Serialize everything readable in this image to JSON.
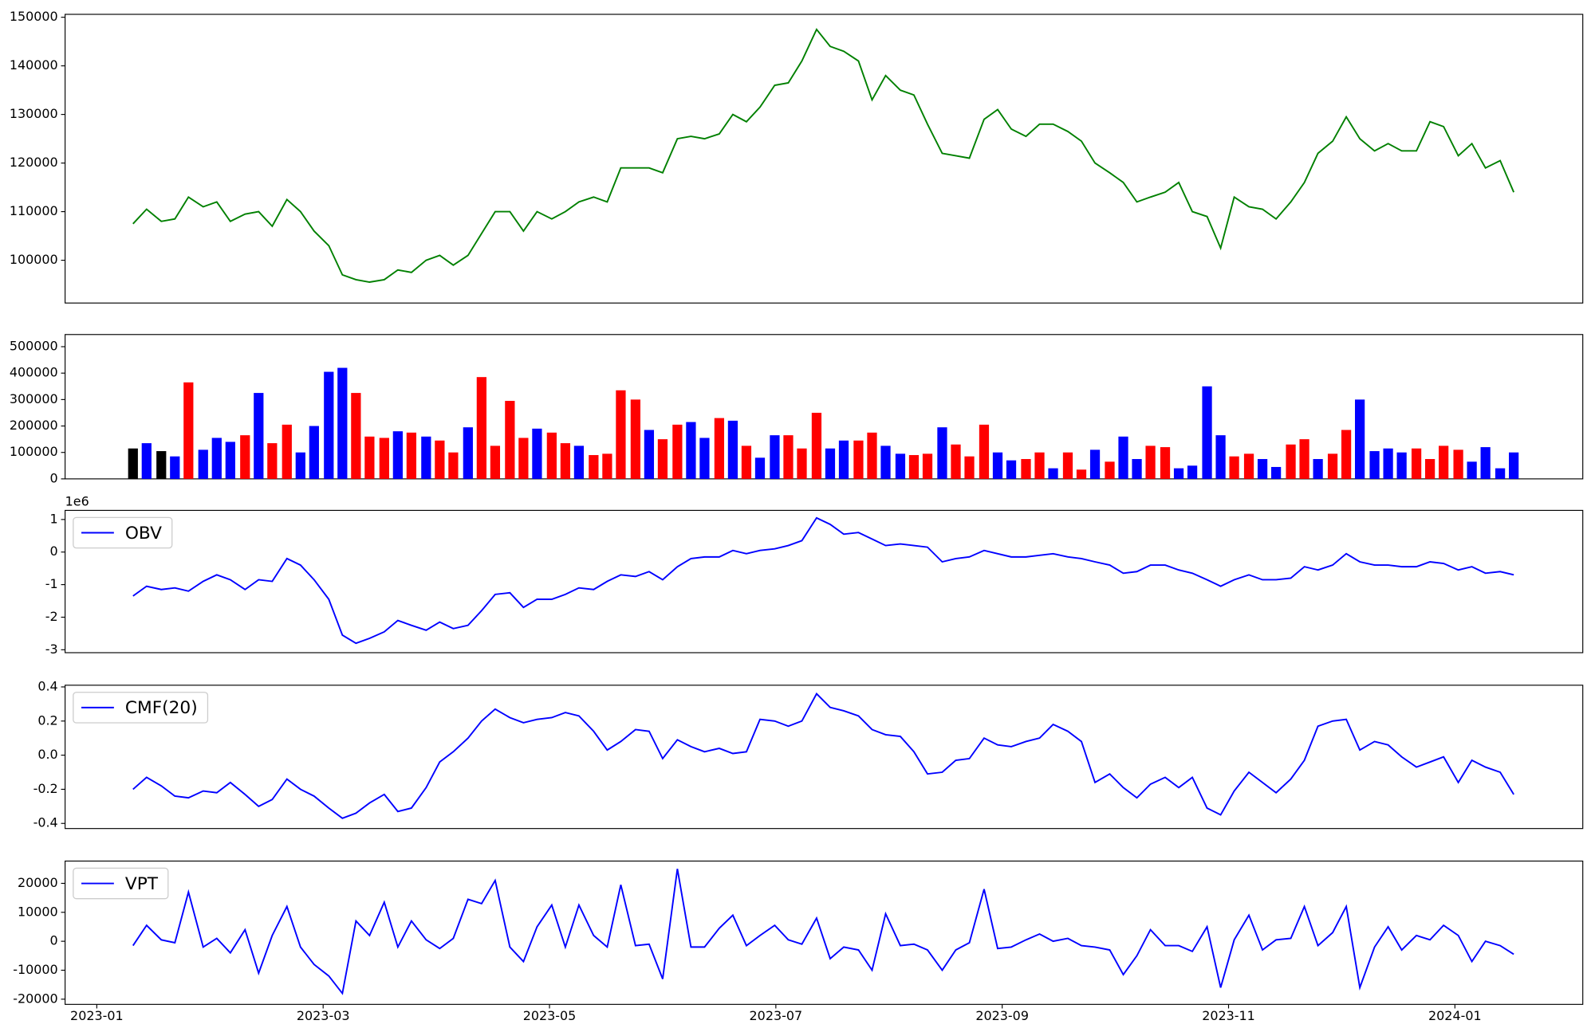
{
  "chart_data": {
    "type": "multi-panel",
    "x": [
      0.32,
      0.44,
      0.57,
      0.69,
      0.81,
      0.94,
      1.06,
      1.18,
      1.31,
      1.43,
      1.55,
      1.68,
      1.8,
      1.92,
      2.05,
      2.17,
      2.29,
      2.41,
      2.54,
      2.66,
      2.78,
      2.91,
      3.03,
      3.15,
      3.28,
      3.4,
      3.52,
      3.65,
      3.77,
      3.89,
      4.02,
      4.14,
      4.26,
      4.39,
      4.51,
      4.63,
      4.76,
      4.88,
      5.0,
      5.13,
      5.25,
      5.37,
      5.5,
      5.62,
      5.74,
      5.86,
      5.99,
      6.11,
      6.23,
      6.36,
      6.48,
      6.6,
      6.73,
      6.85,
      6.97,
      7.1,
      7.22,
      7.34,
      7.47,
      7.59,
      7.71,
      7.84,
      7.96,
      8.08,
      8.21,
      8.33,
      8.45,
      8.58,
      8.7,
      8.82,
      8.95,
      9.07,
      9.19,
      9.31,
      9.44,
      9.56,
      9.68,
      9.81,
      9.93,
      10.05,
      10.18,
      10.3,
      10.42,
      10.55,
      10.67,
      10.79,
      10.92,
      11.04,
      11.16,
      11.29,
      11.41,
      11.53,
      11.66,
      11.78,
      11.9,
      12.03,
      12.15,
      12.27,
      12.4,
      12.52
    ],
    "xlim": [
      -0.28,
      13.13
    ],
    "xticks": [
      {
        "value": 0,
        "label": "2023-01"
      },
      {
        "value": 2,
        "label": "2023-03"
      },
      {
        "value": 4,
        "label": "2023-05"
      },
      {
        "value": 6,
        "label": "2023-07"
      },
      {
        "value": 8,
        "label": "2023-09"
      },
      {
        "value": 10,
        "label": "2023-11"
      },
      {
        "value": 12,
        "label": "2024-01"
      }
    ],
    "panels": [
      {
        "type": "line",
        "ylim": [
          91200,
          150600
        ],
        "yticks": [
          100000,
          110000,
          120000,
          130000,
          140000,
          150000
        ],
        "series": [
          {
            "color": "green",
            "values": [
              107500,
              110500,
              108000,
              108500,
              113000,
              111000,
              112000,
              108000,
              109500,
              110000,
              107000,
              112500,
              110000,
              106000,
              103000,
              97000,
              96000,
              95500,
              96000,
              98000,
              97500,
              100000,
              101000,
              99000,
              101000,
              105500,
              110000,
              110000,
              106000,
              110000,
              108500,
              110000,
              112000,
              113000,
              112000,
              119000,
              119000,
              119000,
              118000,
              125000,
              125500,
              125000,
              126000,
              130000,
              128500,
              131500,
              136000,
              136500,
              141000,
              147500,
              144000,
              143000,
              141000,
              133000,
              138000,
              135000,
              134000,
              128000,
              122000,
              121500,
              121000,
              129000,
              131000,
              127000,
              125500,
              128000,
              128000,
              126500,
              124500,
              120000,
              118000,
              116000,
              112000,
              113000,
              114000,
              116000,
              110000,
              109000,
              102500,
              113000,
              111000,
              110500,
              108500,
              112000,
              116000,
              122000,
              124500,
              129500,
              125000,
              122500,
              124000,
              122500,
              122500,
              128500,
              127500,
              121500,
              124000,
              119000,
              120500,
              114000
            ]
          }
        ]
      },
      {
        "type": "bar",
        "ylim": [
          0,
          546000
        ],
        "yticks": [
          0,
          100000,
          200000,
          300000,
          400000,
          500000
        ],
        "values": [
          115000,
          135000,
          105000,
          85000,
          365000,
          110000,
          155000,
          140000,
          165000,
          325000,
          135000,
          205000,
          100000,
          200000,
          405000,
          420000,
          325000,
          160000,
          155000,
          180000,
          175000,
          160000,
          145000,
          100000,
          195000,
          385000,
          125000,
          295000,
          155000,
          190000,
          175000,
          135000,
          125000,
          90000,
          95000,
          335000,
          300000,
          185000,
          150000,
          205000,
          215000,
          155000,
          230000,
          220000,
          125000,
          80000,
          165000,
          165000,
          115000,
          250000,
          115000,
          145000,
          145000,
          175000,
          125000,
          95000,
          90000,
          95000,
          195000,
          130000,
          85000,
          205000,
          100000,
          70000,
          75000,
          100000,
          40000,
          100000,
          35000,
          110000,
          65000,
          160000,
          75000,
          125000,
          120000,
          40000,
          50000,
          350000,
          165000,
          85000,
          95000,
          75000,
          45000,
          130000,
          150000,
          75000,
          95000,
          185000,
          300000,
          105000,
          115000,
          100000,
          115000,
          75000,
          125000,
          110000,
          65000,
          120000,
          40000,
          100000
        ],
        "colors": [
          "black",
          "blue",
          "black",
          "blue",
          "red",
          "blue",
          "blue",
          "blue",
          "red",
          "blue",
          "red",
          "red",
          "blue",
          "blue",
          "blue",
          "blue",
          "red",
          "red",
          "red",
          "blue",
          "red",
          "blue",
          "red",
          "red",
          "blue",
          "red",
          "red",
          "red",
          "red",
          "blue",
          "red",
          "red",
          "blue",
          "red",
          "red",
          "red",
          "red",
          "blue",
          "red",
          "red",
          "blue",
          "blue",
          "red",
          "blue",
          "red",
          "blue",
          "blue",
          "red",
          "red",
          "red",
          "blue",
          "blue",
          "red",
          "red",
          "blue",
          "blue",
          "red",
          "red",
          "blue",
          "red",
          "red",
          "red",
          "blue",
          "blue",
          "red",
          "red",
          "blue",
          "red",
          "red",
          "blue",
          "red",
          "blue",
          "blue",
          "red",
          "red",
          "blue",
          "blue",
          "blue",
          "blue",
          "red",
          "red",
          "blue",
          "blue",
          "red",
          "red",
          "blue",
          "red",
          "red",
          "blue",
          "blue",
          "blue",
          "blue",
          "red",
          "red",
          "red",
          "red",
          "blue",
          "blue",
          "blue",
          "blue"
        ]
      },
      {
        "type": "line",
        "ylim": [
          -3.09,
          1.28
        ],
        "yticks": [
          -3,
          -2,
          -1,
          0,
          1
        ],
        "offset_text": "1e6",
        "legend": "upper left",
        "series": [
          {
            "name": "OBV",
            "color": "blue",
            "values": [
              -1.35,
              -1.05,
              -1.15,
              -1.1,
              -1.2,
              -0.9,
              -0.7,
              -0.85,
              -1.15,
              -0.85,
              -0.9,
              -0.2,
              -0.4,
              -0.85,
              -1.45,
              -2.55,
              -2.8,
              -2.65,
              -2.45,
              -2.1,
              -2.25,
              -2.4,
              -2.15,
              -2.35,
              -2.25,
              -1.8,
              -1.3,
              -1.25,
              -1.7,
              -1.45,
              -1.45,
              -1.3,
              -1.1,
              -1.15,
              -0.9,
              -0.7,
              -0.75,
              -0.6,
              -0.85,
              -0.45,
              -0.2,
              -0.15,
              -0.15,
              0.05,
              -0.05,
              0.05,
              0.1,
              0.2,
              0.35,
              1.05,
              0.85,
              0.55,
              0.6,
              0.4,
              0.2,
              0.25,
              0.2,
              0.15,
              -0.3,
              -0.2,
              -0.15,
              0.05,
              -0.05,
              -0.15,
              -0.15,
              -0.1,
              -0.05,
              -0.15,
              -0.2,
              -0.3,
              -0.4,
              -0.65,
              -0.6,
              -0.4,
              -0.4,
              -0.55,
              -0.65,
              -0.85,
              -1.05,
              -0.85,
              -0.7,
              -0.85,
              -0.85,
              -0.8,
              -0.45,
              -0.55,
              -0.4,
              -0.05,
              -0.3,
              -0.4,
              -0.4,
              -0.45,
              -0.45,
              -0.3,
              -0.35,
              -0.55,
              -0.45,
              -0.65,
              -0.6,
              -0.7
            ]
          }
        ]
      },
      {
        "type": "line",
        "ylim": [
          -0.43,
          0.41
        ],
        "yticks": [
          -0.4,
          -0.2,
          {
            "value": 0,
            "label": "0.0"
          },
          0.2,
          0.4
        ],
        "legend": "upper left",
        "series": [
          {
            "name": "CMF(20)",
            "color": "blue",
            "values": [
              -0.2,
              -0.13,
              -0.18,
              -0.24,
              -0.25,
              -0.21,
              -0.22,
              -0.16,
              -0.23,
              -0.3,
              -0.26,
              -0.14,
              -0.2,
              -0.24,
              -0.31,
              -0.37,
              -0.34,
              -0.28,
              -0.23,
              -0.33,
              -0.31,
              -0.19,
              -0.04,
              0.02,
              0.1,
              0.2,
              0.27,
              0.22,
              0.19,
              0.21,
              0.22,
              0.25,
              0.23,
              0.14,
              0.03,
              0.08,
              0.15,
              0.14,
              -0.02,
              0.09,
              0.05,
              0.02,
              0.04,
              0.01,
              0.02,
              0.21,
              0.2,
              0.17,
              0.2,
              0.36,
              0.28,
              0.26,
              0.23,
              0.15,
              0.12,
              0.11,
              0.02,
              -0.11,
              -0.1,
              -0.03,
              -0.02,
              0.1,
              0.06,
              0.05,
              0.08,
              0.1,
              0.18,
              0.14,
              0.08,
              -0.16,
              -0.11,
              -0.19,
              -0.25,
              -0.17,
              -0.13,
              -0.19,
              -0.13,
              -0.31,
              -0.35,
              -0.21,
              -0.1,
              -0.16,
              -0.22,
              -0.14,
              -0.03,
              0.17,
              0.2,
              0.21,
              0.03,
              0.08,
              0.06,
              -0.01,
              -0.07,
              -0.04,
              -0.01,
              -0.16,
              -0.03,
              -0.07,
              -0.1,
              -0.23
            ]
          }
        ]
      },
      {
        "type": "line",
        "ylim": [
          -21800,
          27700
        ],
        "yticks": [
          -20000,
          -10000,
          0,
          10000,
          20000
        ],
        "legend": "upper left",
        "series": [
          {
            "name": "VPT",
            "color": "blue",
            "values": [
              -1500,
              5500,
              500,
              -500,
              17000,
              -2000,
              1000,
              -4000,
              4000,
              -11000,
              2000,
              12000,
              -2000,
              -8000,
              -12000,
              -18000,
              7000,
              2000,
              13500,
              -2000,
              7000,
              500,
              -2500,
              1000,
              14500,
              13000,
              21000,
              -2000,
              -7000,
              5000,
              12500,
              -2000,
              12500,
              2000,
              -2000,
              19500,
              -1500,
              -1000,
              -13000,
              25000,
              -2000,
              -2000,
              4500,
              9000,
              -1500,
              2000,
              5500,
              500,
              -1000,
              8000,
              -6000,
              -2000,
              -3000,
              -10000,
              9500,
              -1500,
              -1000,
              -3000,
              -10000,
              -3000,
              -500,
              18000,
              -2500,
              -2000,
              500,
              2500,
              0,
              1000,
              -1500,
              -2000,
              -3000,
              -11500,
              -5000,
              4000,
              -1500,
              -1500,
              -3500,
              5000,
              -16000,
              500,
              9000,
              -3000,
              500,
              1000,
              12000,
              -1500,
              3000,
              12000,
              -16000,
              -2000,
              5000,
              -3000,
              2000,
              500,
              5500,
              2000,
              -7000,
              0,
              -1500,
              -4500
            ]
          }
        ]
      }
    ]
  }
}
